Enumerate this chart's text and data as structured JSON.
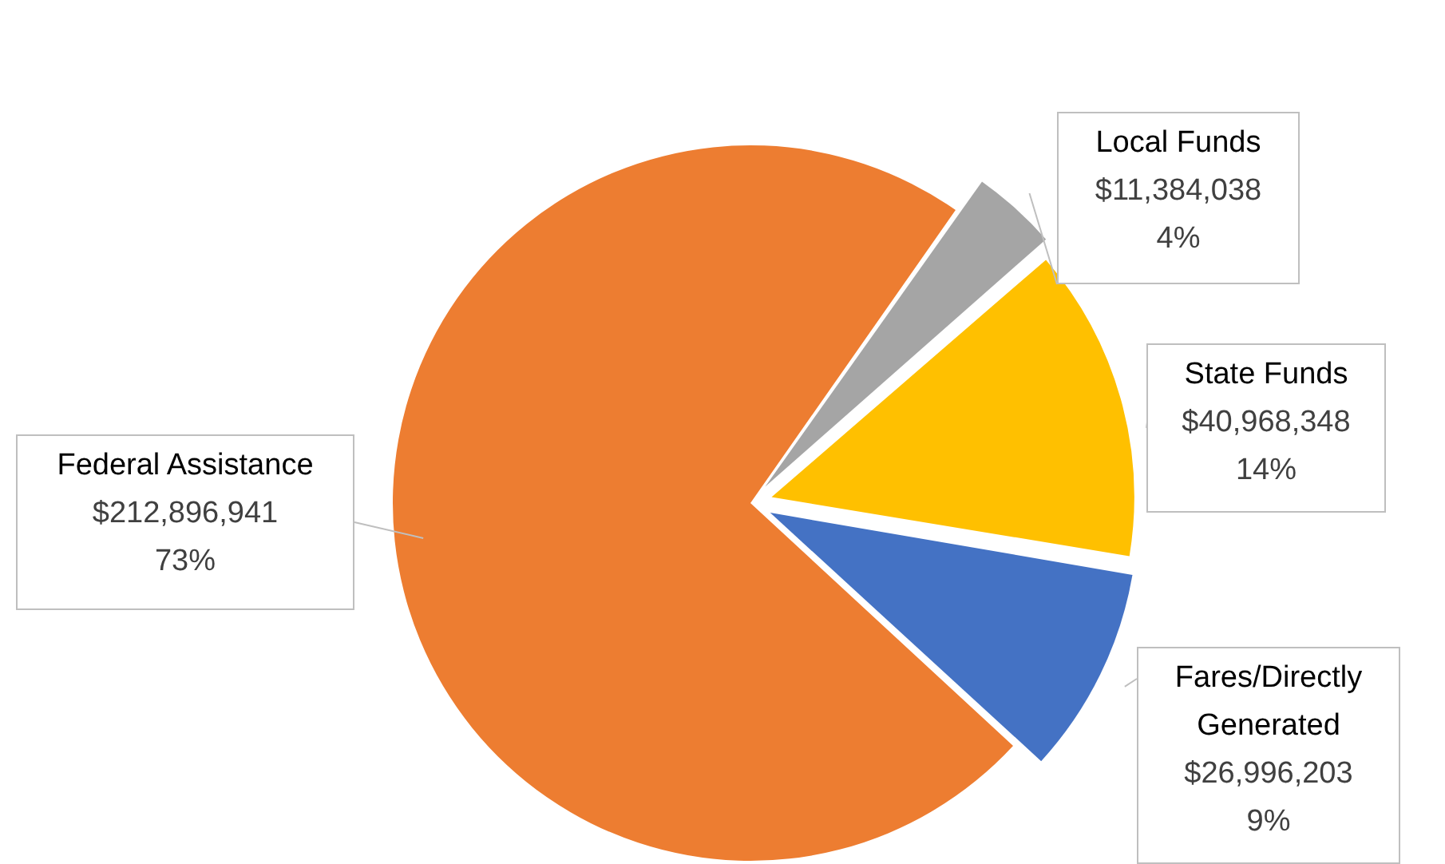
{
  "chart_data": {
    "type": "pie",
    "categories": [
      "Local Funds",
      "State Funds",
      "Fares/Directly Generated",
      "Federal Assistance"
    ],
    "values": [
      11384038,
      40968348,
      26996203,
      212896941
    ],
    "colors": [
      "#a5a5a5",
      "#ffc000",
      "#4472c4",
      "#ed7d31"
    ],
    "value_labels": [
      "$11,384,038\n4%",
      "$40,968,348\n14%",
      "$26,996,203\n9%",
      "$212,896,941\n73%"
    ],
    "legend": false
  }
}
